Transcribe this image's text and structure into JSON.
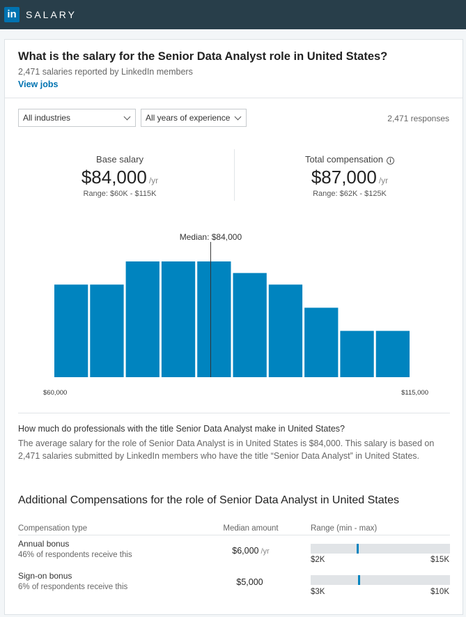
{
  "topbar": {
    "logo": "in",
    "brand": "SALARY"
  },
  "header": {
    "title": "What is the salary for the Senior Data Analyst role in United States?",
    "subtitle": "2,471 salaries reported by LinkedIn members",
    "view_jobs": "View jobs"
  },
  "filters": {
    "industry": "All industries",
    "experience": "All years of experience",
    "responses": "2,471 responses"
  },
  "base": {
    "label": "Base salary",
    "value": "$84,000",
    "unit": "/yr",
    "range": "Range: $60K - $115K"
  },
  "total": {
    "label": "Total compensation",
    "value": "$87,000",
    "unit": "/yr",
    "range": "Range: $62K - $125K"
  },
  "chart_data": {
    "type": "bar",
    "values": [
      40,
      40,
      50,
      50,
      50,
      45,
      40,
      30,
      20,
      20
    ],
    "bar_color": "#0084bf",
    "x_min_label": "$60,000",
    "x_max_label": "$115,000",
    "median_label": "Median: $84,000",
    "median_fraction": 0.4375,
    "ylim": [
      0,
      50
    ]
  },
  "about": {
    "question": "How much do professionals with the title Senior Data Analyst make in United States?",
    "description": "The average salary for the role of Senior Data Analyst is in United States is $84,000. This salary is based on 2,471 salaries submitted by LinkedIn members who have the title “Senior Data Analyst” in United States."
  },
  "additional": {
    "title": "Additional Compensations for the role of Senior Data Analyst in United States",
    "col_type": "Compensation type",
    "col_median": "Median amount",
    "col_range": "Range (min - max)",
    "rows": [
      {
        "name": "Annual bonus",
        "sub": "46% of respondents receive this",
        "amount": "$6,000",
        "unit": "/yr",
        "min": "$2K",
        "max": "$15K",
        "marker_fraction": 0.33
      },
      {
        "name": "Sign-on bonus",
        "sub": "6% of respondents receive this",
        "amount": "$5,000",
        "unit": "",
        "min": "$3K",
        "max": "$10K",
        "marker_fraction": 0.34
      }
    ]
  }
}
